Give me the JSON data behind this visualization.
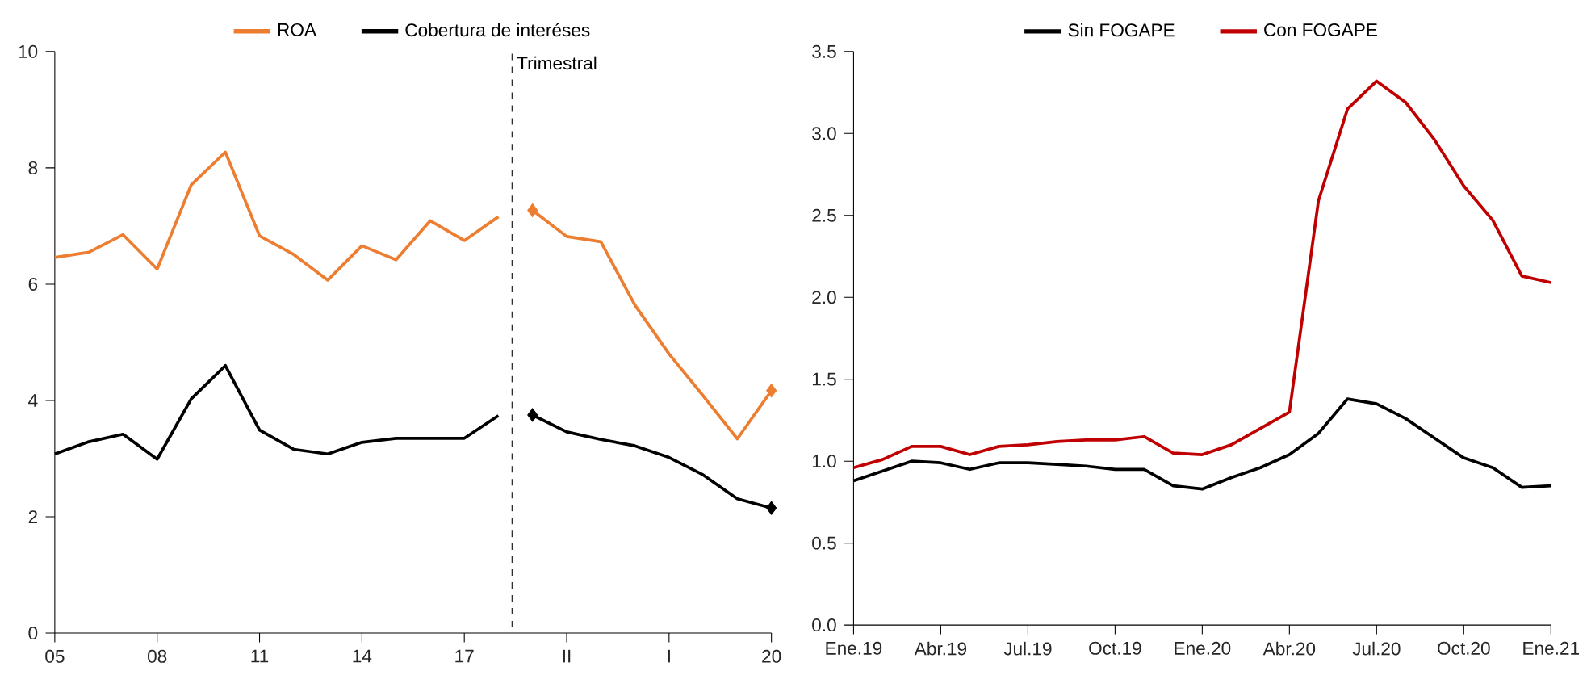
{
  "chart_data": [
    {
      "type": "line",
      "legend": "top",
      "ylim": [
        0,
        10
      ],
      "categories": [
        "05",
        null,
        null,
        "08",
        null,
        null,
        "11",
        null,
        null,
        "14",
        null,
        null,
        "17",
        null,
        null,
        "II",
        null,
        null,
        "I",
        null,
        null,
        "20"
      ],
      "yticks": [
        0,
        2,
        4,
        6,
        8,
        10
      ],
      "annotations": [
        "Trimestral"
      ],
      "series": [
        {
          "name": "ROA",
          "color": "#ed7d31",
          "values": [
            6.46,
            6.55,
            6.85,
            6.26,
            7.71,
            8.27,
            6.83,
            6.51,
            6.07,
            6.66,
            6.42,
            7.09,
            6.75,
            7.16,
            null,
            null,
            null,
            null,
            null,
            null,
            null,
            null
          ]
        },
        {
          "color": "#ed7d31",
          "values": [
            null,
            null,
            null,
            null,
            null,
            null,
            null,
            null,
            null,
            null,
            null,
            null,
            null,
            null,
            7.27,
            6.82,
            6.73,
            5.64,
            4.8,
            4.08,
            3.34,
            4.17
          ]
        },
        {
          "name": "Cobertura de interéses",
          "color": "#000000",
          "values": [
            3.08,
            3.29,
            3.42,
            2.99,
            4.03,
            4.6,
            3.49,
            3.16,
            3.08,
            3.28,
            3.35,
            3.35,
            3.35,
            3.74,
            null,
            null,
            null,
            null,
            null,
            null,
            null,
            null
          ]
        },
        {
          "color": "#000000",
          "values": [
            null,
            null,
            null,
            null,
            null,
            null,
            null,
            null,
            null,
            null,
            null,
            null,
            null,
            null,
            3.75,
            3.46,
            3.33,
            3.22,
            3.02,
            2.72,
            2.31,
            2.15
          ]
        },
        {
          "type": "scatter",
          "marker": "diamond",
          "color": "#ed7d31",
          "values": [
            null,
            null,
            null,
            null,
            null,
            null,
            null,
            null,
            null,
            null,
            null,
            null,
            null,
            null,
            7.27,
            null,
            null,
            null,
            null,
            null,
            null,
            4.17
          ]
        },
        {
          "type": "scatter",
          "marker": "diamond",
          "color": "#000000",
          "values": [
            null,
            null,
            null,
            null,
            null,
            null,
            null,
            null,
            null,
            null,
            null,
            null,
            null,
            null,
            3.75,
            null,
            null,
            null,
            null,
            null,
            null,
            2.15
          ]
        }
      ]
    },
    {
      "type": "line",
      "legend": "top",
      "ylim": [
        0,
        3.5
      ],
      "categories": [
        "Ene.19",
        null,
        null,
        "Abr.19",
        null,
        null,
        "Jul.19",
        null,
        null,
        "Oct.19",
        null,
        null,
        "Ene.20",
        null,
        null,
        "Abr.20",
        null,
        null,
        "Jul.20",
        null,
        null,
        "Oct.20",
        null,
        null,
        "Ene.21"
      ],
      "yticks": [
        {
          "value": 0,
          "label": "0.0"
        },
        {
          "value": 0.5,
          "label": "0.5"
        },
        {
          "value": 1,
          "label": "1.0"
        },
        {
          "value": 1.5,
          "label": "1.5"
        },
        {
          "value": 2,
          "label": "2.0"
        },
        {
          "value": 2.5,
          "label": "2.5"
        },
        {
          "value": 3,
          "label": "3.0"
        },
        {
          "value": 3.5,
          "label": "3.5"
        }
      ],
      "series": [
        {
          "name": "Sin FOGAPE",
          "color": "#000000",
          "values": [
            0.88,
            0.94,
            1.0,
            0.99,
            0.95,
            0.99,
            0.99,
            0.98,
            0.97,
            0.95,
            0.95,
            0.85,
            0.83,
            0.9,
            0.96,
            1.04,
            1.17,
            1.38,
            1.35,
            1.26,
            1.14,
            1.02,
            0.96,
            0.84,
            0.85
          ]
        },
        {
          "name": "Con FOGAPE",
          "color": "#c00000",
          "values": [
            0.96,
            1.01,
            1.09,
            1.09,
            1.04,
            1.09,
            1.1,
            1.12,
            1.13,
            1.13,
            1.15,
            1.05,
            1.04,
            1.1,
            1.2,
            1.3,
            2.59,
            3.15,
            3.32,
            3.19,
            2.96,
            2.68,
            2.47,
            2.13,
            2.09
          ]
        }
      ]
    }
  ]
}
